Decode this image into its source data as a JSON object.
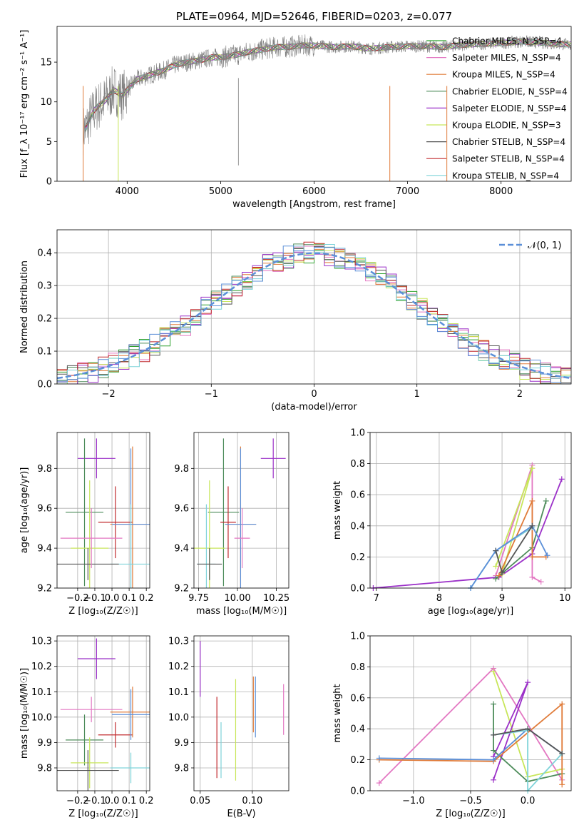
{
  "chart_data": [
    {
      "id": "spectrum",
      "type": "line",
      "title": "PLATE=0964, MJD=52646, FIBERID=0203, z=0.077",
      "xlabel": "wavelength [Angstrom, rest frame]",
      "ylabel": "Flux [f_λ 10⁻¹⁷ erg cm⁻² s⁻¹ A⁻¹]",
      "xlim": [
        3250,
        8750
      ],
      "ylim": [
        0,
        19.5
      ],
      "xticks": [
        4000,
        5000,
        6000,
        7000,
        8000
      ],
      "yticks": [
        0,
        5,
        10,
        15
      ],
      "grid": false,
      "legend_position": "top-right",
      "data_series": {
        "name": "data",
        "color": "#808080",
        "x": [
          3550,
          3600,
          3650,
          3700,
          3750,
          3800,
          3850,
          3900,
          3950,
          4000,
          4100,
          4200,
          4300,
          4400,
          4500,
          4600,
          4700,
          4800,
          4900,
          5000,
          5100,
          5200,
          5300,
          5400,
          5500,
          5600,
          5700,
          5800,
          5900,
          6000,
          6200,
          6400,
          6600,
          6800,
          7000,
          7200,
          7400,
          7600,
          7800,
          8000,
          8200,
          8400,
          8600,
          8750
        ],
        "y": [
          6.5,
          7.8,
          9.0,
          9.6,
          10.0,
          10.6,
          11.5,
          11.2,
          10.8,
          11.5,
          12.8,
          13.2,
          13.6,
          14.0,
          14.6,
          14.9,
          15.1,
          15.3,
          15.6,
          15.6,
          15.8,
          16.0,
          16.3,
          16.5,
          16.7,
          16.9,
          16.9,
          17.0,
          17.1,
          17.1,
          16.9,
          17.0,
          16.7,
          16.9,
          17.0,
          17.0,
          16.9,
          17.2,
          17.3,
          17.4,
          17.6,
          17.5,
          17.3,
          17.2
        ]
      },
      "series": [
        {
          "name": "Chabrier MILES, N_SSP=4",
          "color": "#2ca02c"
        },
        {
          "name": "Salpeter MILES, N_SSP=4",
          "color": "#e377c2"
        },
        {
          "name": "Kroupa MILES, N_SSP=4",
          "color": "#e07b39"
        },
        {
          "name": "Chabrier ELODIE, N_SSP=4",
          "color": "#4d8c5a"
        },
        {
          "name": "Salpeter ELODIE, N_SSP=4",
          "color": "#9b30c8"
        },
        {
          "name": "Kroupa ELODIE, N_SSP=3",
          "color": "#c8e65a"
        },
        {
          "name": "Chabrier STELIB, N_SSP=4",
          "color": "#555555"
        },
        {
          "name": "Salpeter STELIB, N_SSP=4",
          "color": "#c0282c"
        },
        {
          "name": "Kroupa STELIB, N_SSP=4",
          "color": "#7fd3d9"
        }
      ]
    },
    {
      "id": "residuals",
      "type": "line",
      "xlabel": "(data-model)/error",
      "ylabel": "Normed distribution",
      "xlim": [
        -2.5,
        2.5
      ],
      "ylim": [
        0,
        0.47
      ],
      "xticks": [
        -2,
        -1,
        0,
        1,
        2
      ],
      "yticks": [
        0.0,
        0.1,
        0.2,
        0.3,
        0.4
      ],
      "grid": true,
      "legend_position": "top-right",
      "gaussian_label": "𝒩(0, 1)",
      "gaussian_color": "#5b8fd8",
      "hist_colors": [
        "#2ca02c",
        "#e377c2",
        "#e07b39",
        "#4d8c5a",
        "#9b30c8",
        "#c8e65a",
        "#555555",
        "#c0282c",
        "#7fd3d9",
        "#5b8fd8"
      ]
    },
    {
      "id": "age-vs-Z",
      "type": "scatter",
      "xlabel": "Z [log₁₀(Z/Z☉)]",
      "ylabel": "age  [log₁₀(age/yr)]",
      "xlim": [
        -0.32,
        0.22
      ],
      "ylim": [
        9.2,
        9.98
      ],
      "xticks": [
        -0.2,
        -0.1,
        0.0,
        0.1,
        0.2
      ],
      "yticks": [
        9.2,
        9.4,
        9.6,
        9.8
      ],
      "grid": true,
      "points": [
        {
          "x": -0.09,
          "y": 9.85,
          "xerr": 0.11,
          "yerr": 0.1,
          "color": "#9b30c8"
        },
        {
          "x": -0.16,
          "y": 9.58,
          "xerr": 0.11,
          "yerr": 0.37,
          "color": "#4d8c5a"
        },
        {
          "x": -0.13,
          "y": 9.4,
          "xerr": 0.11,
          "yerr": 0.34,
          "color": "#c8e65a"
        },
        {
          "x": 0.02,
          "y": 9.53,
          "xerr": 0.1,
          "yerr": 0.18,
          "color": "#c0282c"
        },
        {
          "x": 0.12,
          "y": 9.52,
          "xerr": 0.13,
          "yerr": 0.39,
          "color": "#e07b39"
        },
        {
          "x": 0.11,
          "y": 9.52,
          "xerr": 0.11,
          "yerr": 0.38,
          "color": "#5b8fd8"
        },
        {
          "x": 0.11,
          "y": 9.32,
          "xerr": 0.12,
          "yerr": 0.3,
          "color": "#7fd3d9"
        },
        {
          "x": -0.14,
          "y": 9.32,
          "xerr": 0.18,
          "yerr": 0.08,
          "color": "#555555"
        },
        {
          "x": -0.12,
          "y": 9.45,
          "xerr": 0.18,
          "yerr": 0.15,
          "color": "#e377c2"
        }
      ]
    },
    {
      "id": "age-vs-mass",
      "type": "scatter",
      "xlabel": "mass [log₁₀(M/M☉)]",
      "ylabel": "",
      "xlim": [
        9.72,
        10.33
      ],
      "ylim": [
        9.2,
        9.98
      ],
      "xticks": [
        9.75,
        10.0,
        10.25
      ],
      "yticks": [
        9.2,
        9.4,
        9.6,
        9.8
      ],
      "grid": true,
      "points": [
        {
          "x": 10.23,
          "y": 9.85,
          "xerr": 0.08,
          "yerr": 0.1,
          "color": "#9b30c8"
        },
        {
          "x": 9.91,
          "y": 9.58,
          "xerr": 0.1,
          "yerr": 0.37,
          "color": "#4d8c5a"
        },
        {
          "x": 9.82,
          "y": 9.4,
          "xerr": 0.1,
          "yerr": 0.34,
          "color": "#c8e65a"
        },
        {
          "x": 9.94,
          "y": 9.53,
          "xerr": 0.05,
          "yerr": 0.18,
          "color": "#c0282c"
        },
        {
          "x": 10.02,
          "y": 9.52,
          "xerr": 0.1,
          "yerr": 0.39,
          "color": "#e07b39"
        },
        {
          "x": 10.02,
          "y": 9.52,
          "xerr": 0.1,
          "yerr": 0.38,
          "color": "#5b8fd8"
        },
        {
          "x": 9.8,
          "y": 9.32,
          "xerr": 0.06,
          "yerr": 0.3,
          "color": "#7fd3d9"
        },
        {
          "x": 9.82,
          "y": 9.32,
          "xerr": 0.08,
          "yerr": 0.08,
          "color": "#555555"
        },
        {
          "x": 10.03,
          "y": 9.45,
          "xerr": 0.05,
          "yerr": 0.15,
          "color": "#e377c2"
        }
      ]
    },
    {
      "id": "weight-vs-age",
      "type": "line",
      "xlabel": "age  [log₁₀(age/yr)]",
      "ylabel": "mass weight",
      "xlim": [
        6.9,
        10.1
      ],
      "ylim": [
        0,
        1.0
      ],
      "xticks": [
        7,
        8,
        9,
        10
      ],
      "yticks": [
        0.0,
        0.2,
        0.4,
        0.6,
        0.8,
        1.0
      ],
      "grid": true,
      "series": [
        {
          "color": "#9b30c8",
          "x": [
            6.95,
            8.95,
            9.48,
            9.95
          ],
          "y": [
            0.0,
            0.07,
            0.22,
            0.7
          ]
        },
        {
          "color": "#e377c2",
          "x": [
            8.9,
            9.48,
            9.48,
            9.62
          ],
          "y": [
            0.08,
            0.79,
            0.07,
            0.04
          ]
        },
        {
          "color": "#c8e65a",
          "x": [
            8.9,
            9.48,
            9.0
          ],
          "y": [
            0.14,
            0.77,
            0.09
          ]
        },
        {
          "color": "#4d8c5a",
          "x": [
            8.9,
            9.48,
            9.7
          ],
          "y": [
            0.06,
            0.26,
            0.56
          ]
        },
        {
          "color": "#e07b39",
          "x": [
            8.95,
            9.48,
            9.48,
            9.7
          ],
          "y": [
            0.08,
            0.56,
            0.2,
            0.2
          ]
        },
        {
          "color": "#7fd3d9",
          "x": [
            8.5,
            8.9,
            9.48
          ],
          "y": [
            0.0,
            0.24,
            0.39
          ]
        },
        {
          "color": "#5b8fd8",
          "x": [
            8.5,
            8.9,
            9.48,
            9.72
          ],
          "y": [
            0.0,
            0.24,
            0.4,
            0.21
          ]
        },
        {
          "color": "#555555",
          "x": [
            8.9,
            9.0,
            9.48
          ],
          "y": [
            0.24,
            0.1,
            0.4
          ]
        }
      ]
    },
    {
      "id": "mass-vs-Z",
      "type": "scatter",
      "xlabel": "Z [log₁₀(Z/Z☉)]",
      "ylabel": "mass [log₁₀(M/M☉)]",
      "xlim": [
        -0.32,
        0.22
      ],
      "ylim": [
        9.71,
        10.32
      ],
      "xticks": [
        -0.2,
        -0.1,
        0.0,
        0.1,
        0.2
      ],
      "yticks": [
        9.8,
        9.9,
        10.0,
        10.1,
        10.2,
        10.3
      ],
      "grid": true,
      "points": [
        {
          "x": -0.09,
          "y": 10.23,
          "xerr": 0.11,
          "yerr": 0.08,
          "color": "#9b30c8"
        },
        {
          "x": -0.16,
          "y": 9.91,
          "xerr": 0.11,
          "yerr": 0.1,
          "color": "#4d8c5a"
        },
        {
          "x": -0.13,
          "y": 9.82,
          "xerr": 0.11,
          "yerr": 0.1,
          "color": "#c8e65a"
        },
        {
          "x": 0.02,
          "y": 9.93,
          "xerr": 0.1,
          "yerr": 0.05,
          "color": "#c0282c"
        },
        {
          "x": 0.12,
          "y": 10.02,
          "xerr": 0.13,
          "yerr": 0.1,
          "color": "#e07b39"
        },
        {
          "x": 0.11,
          "y": 10.01,
          "xerr": 0.11,
          "yerr": 0.1,
          "color": "#5b8fd8"
        },
        {
          "x": 0.11,
          "y": 9.8,
          "xerr": 0.12,
          "yerr": 0.06,
          "color": "#7fd3d9"
        },
        {
          "x": -0.14,
          "y": 9.79,
          "xerr": 0.18,
          "yerr": 0.08,
          "color": "#555555"
        },
        {
          "x": -0.12,
          "y": 10.03,
          "xerr": 0.18,
          "yerr": 0.05,
          "color": "#e377c2"
        }
      ]
    },
    {
      "id": "mass-vs-EBV",
      "type": "scatter",
      "xlabel": "E(B-V)",
      "ylabel": "",
      "xlim": [
        0.044,
        0.135
      ],
      "ylim": [
        9.71,
        10.32
      ],
      "xticks": [
        0.05,
        0.1
      ],
      "yticks": [
        9.8,
        9.9,
        10.0,
        10.1,
        10.2,
        10.3
      ],
      "grid": true,
      "points": [
        {
          "x": 0.05,
          "y": 10.19,
          "xerr": 0,
          "yerr": 0.11,
          "color": "#9b30c8"
        },
        {
          "x": 0.066,
          "y": 9.92,
          "xerr": 0,
          "yerr": 0.16,
          "color": "#c0282c"
        },
        {
          "x": 0.07,
          "y": 9.87,
          "xerr": 0,
          "yerr": 0.11,
          "color": "#7fd3d9"
        },
        {
          "x": 0.084,
          "y": 9.95,
          "xerr": 0,
          "yerr": 0.2,
          "color": "#c8e65a"
        },
        {
          "x": 0.101,
          "y": 10.05,
          "xerr": 0,
          "yerr": 0.11,
          "color": "#e07b39"
        },
        {
          "x": 0.103,
          "y": 10.04,
          "xerr": 0,
          "yerr": 0.12,
          "color": "#5b8fd8"
        },
        {
          "x": 0.13,
          "y": 10.03,
          "xerr": 0,
          "yerr": 0.1,
          "color": "#e377c2"
        }
      ]
    },
    {
      "id": "weight-vs-Z",
      "type": "line",
      "xlabel": "Z [log₁₀(Z/Z☉)]",
      "ylabel": "mass weight",
      "xlim": [
        -1.38,
        0.38
      ],
      "ylim": [
        0,
        1.0
      ],
      "xticks": [
        -1.0,
        -0.5,
        0.0
      ],
      "yticks": [
        0.0,
        0.2,
        0.4,
        0.6,
        0.8,
        1.0
      ],
      "grid": true,
      "series": [
        {
          "color": "#e377c2",
          "x": [
            -1.3,
            -0.3,
            0.3
          ],
          "y": [
            0.05,
            0.79,
            0.07
          ]
        },
        {
          "color": "#c8e65a",
          "x": [
            -0.3,
            0.0,
            0.3
          ],
          "y": [
            0.77,
            0.09,
            0.14
          ]
        },
        {
          "color": "#9b30c8",
          "x": [
            -0.3,
            0.0,
            -0.3
          ],
          "y": [
            0.07,
            0.7,
            0.22
          ]
        },
        {
          "color": "#4d8c5a",
          "x": [
            -0.3,
            -0.3,
            0.0,
            0.3
          ],
          "y": [
            0.56,
            0.26,
            0.06,
            0.11
          ]
        },
        {
          "color": "#e07b39",
          "x": [
            -1.3,
            -0.3,
            0.3,
            0.3
          ],
          "y": [
            0.2,
            0.19,
            0.56,
            0.04
          ]
        },
        {
          "color": "#5b8fd8",
          "x": [
            -1.3,
            -0.3,
            0.0,
            0.3
          ],
          "y": [
            0.21,
            0.2,
            0.4,
            0.24
          ]
        },
        {
          "color": "#7fd3d9",
          "x": [
            -0.3,
            0.0,
            0.0,
            0.3
          ],
          "y": [
            0.36,
            0.39,
            0.0,
            0.24
          ]
        },
        {
          "color": "#555555",
          "x": [
            -0.3,
            0.0,
            0.3
          ],
          "y": [
            0.36,
            0.4,
            0.24
          ]
        }
      ]
    }
  ]
}
